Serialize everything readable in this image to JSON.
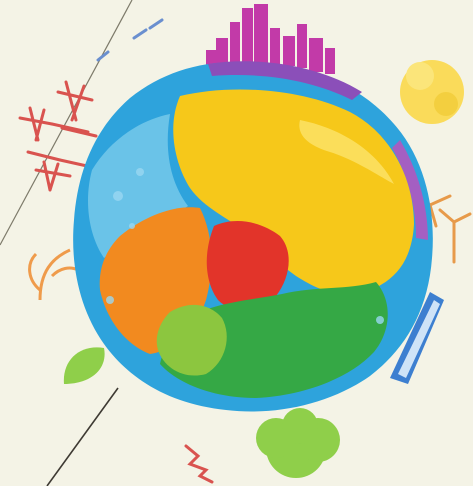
{
  "scene": {
    "background": "#f4f3e6",
    "subject": "colorful-globe-illustration",
    "palette": {
      "ocean_blue": "#2ea3dc",
      "yellow": "#f6c81a",
      "orange": "#f28a1f",
      "red": "#e2342a",
      "green": "#35a845",
      "light_green": "#8cc63f",
      "magenta_city": "#c23aa8",
      "tower_red": "#d9534f",
      "sun_yellow": "#fadb5a",
      "tree_green": "#8fcf4a",
      "panel_blue": "#3d7fd0",
      "line": "#5b5b4d"
    }
  }
}
